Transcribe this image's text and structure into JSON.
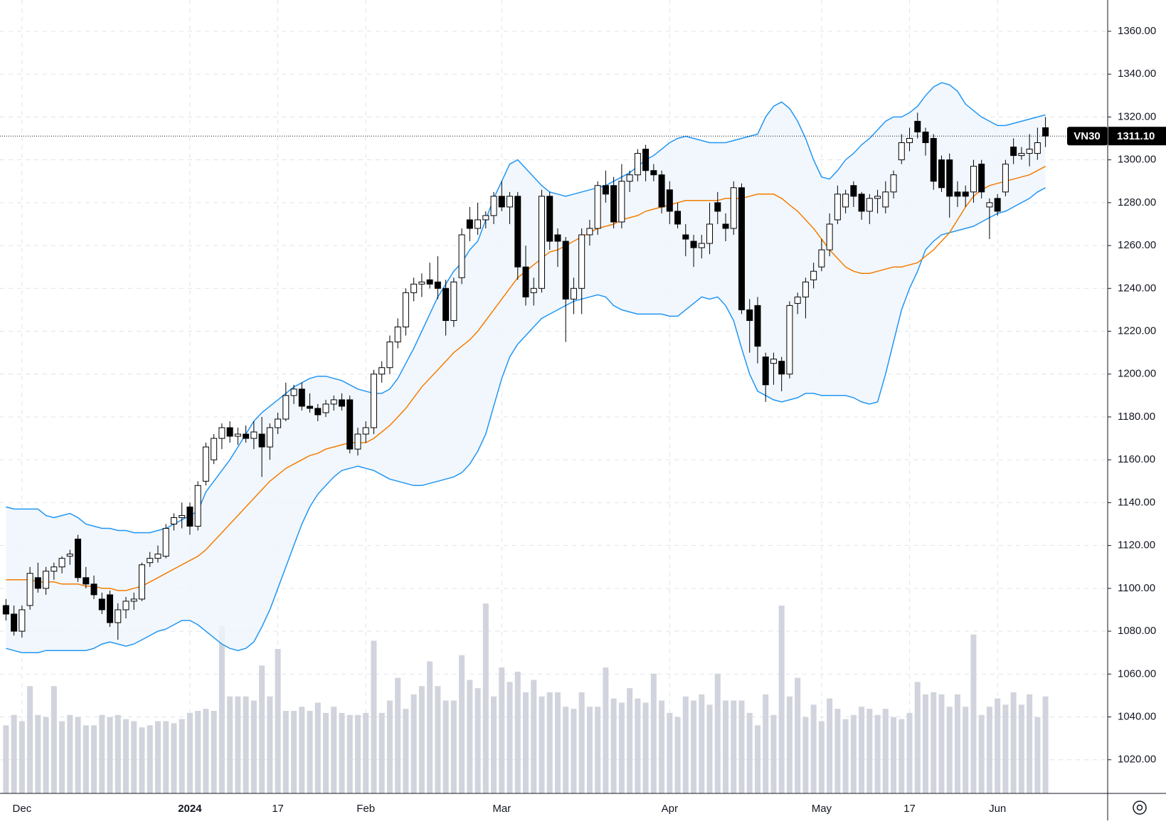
{
  "chart_data": {
    "type": "candlestick",
    "symbol": "VN30",
    "last_price": {
      "value": 1311.1,
      "label": "1311.10"
    },
    "ylim": [
      1004.3,
      1374.6
    ],
    "yticks": [
      {
        "value": 1020,
        "label": "1020.00"
      },
      {
        "value": 1040,
        "label": "1040.00"
      },
      {
        "value": 1060,
        "label": "1060.00"
      },
      {
        "value": 1080,
        "label": "1080.00"
      },
      {
        "value": 1100,
        "label": "1100.00"
      },
      {
        "value": 1120,
        "label": "1120.00"
      },
      {
        "value": 1140,
        "label": "1140.00"
      },
      {
        "value": 1160,
        "label": "1160.00"
      },
      {
        "value": 1180,
        "label": "1180.00"
      },
      {
        "value": 1200,
        "label": "1200.00"
      },
      {
        "value": 1220,
        "label": "1220.00"
      },
      {
        "value": 1240,
        "label": "1240.00"
      },
      {
        "value": 1260,
        "label": "1260.00"
      },
      {
        "value": 1280,
        "label": "1280.00"
      },
      {
        "value": 1300,
        "label": "1300.00"
      },
      {
        "value": 1320,
        "label": "1320.00"
      },
      {
        "value": 1340,
        "label": "1340.00"
      },
      {
        "value": 1360,
        "label": "1360.00"
      }
    ],
    "grid": true,
    "categories": [
      null,
      null,
      "Dec",
      null,
      null,
      null,
      null,
      null,
      null,
      null,
      null,
      null,
      null,
      null,
      null,
      null,
      null,
      null,
      null,
      null,
      null,
      null,
      null,
      "2024",
      null,
      null,
      null,
      null,
      null,
      null,
      null,
      null,
      null,
      null,
      "17",
      null,
      null,
      null,
      null,
      null,
      null,
      null,
      null,
      null,
      null,
      "Feb",
      null,
      null,
      null,
      null,
      null,
      null,
      null,
      null,
      null,
      null,
      null,
      null,
      null,
      null,
      null,
      null,
      "Mar",
      null,
      null,
      null,
      null,
      null,
      null,
      null,
      null,
      null,
      null,
      null,
      null,
      null,
      null,
      null,
      null,
      null,
      null,
      null,
      null,
      "Apr",
      null,
      null,
      null,
      null,
      null,
      null,
      null,
      null,
      null,
      null,
      null,
      null,
      null,
      null,
      null,
      null,
      null,
      null,
      "May",
      null,
      null,
      null,
      null,
      null,
      null,
      null,
      null,
      null,
      null,
      "17",
      null,
      null,
      null,
      null,
      null,
      null,
      null,
      null,
      null,
      null,
      "Jun",
      null,
      null,
      null,
      null,
      null,
      null
    ],
    "candle_colors": {
      "up": "#ffffff",
      "down": "#000000"
    },
    "candles": [
      [
        1092,
        1095,
        1085,
        1088
      ],
      [
        1088,
        1092,
        1078,
        1080
      ],
      [
        1080,
        1092,
        1077,
        1090
      ],
      [
        1092,
        1110,
        1090,
        1107
      ],
      [
        1105,
        1112,
        1098,
        1100
      ],
      [
        1100,
        1110,
        1097,
        1108
      ],
      [
        1108,
        1112,
        1104,
        1110
      ],
      [
        1110,
        1115,
        1107,
        1114
      ],
      [
        1115,
        1118,
        1111,
        1116
      ],
      [
        1123,
        1125,
        1103,
        1105
      ],
      [
        1105,
        1110,
        1100,
        1102
      ],
      [
        1102,
        1106,
        1095,
        1097
      ],
      [
        1095,
        1098,
        1088,
        1090
      ],
      [
        1097,
        1099,
        1082,
        1084
      ],
      [
        1084,
        1093,
        1076,
        1090
      ],
      [
        1090,
        1096,
        1086,
        1094
      ],
      [
        1094,
        1098,
        1090,
        1095
      ],
      [
        1095,
        1112,
        1094,
        1111
      ],
      [
        1112,
        1117,
        1110,
        1114
      ],
      [
        1114,
        1120,
        1112,
        1116
      ],
      [
        1115,
        1130,
        1114,
        1128
      ],
      [
        1130,
        1135,
        1127,
        1133
      ],
      [
        1133,
        1140,
        1128,
        1134
      ],
      [
        1138,
        1140,
        1125,
        1129
      ],
      [
        1129,
        1150,
        1127,
        1148
      ],
      [
        1150,
        1168,
        1148,
        1166
      ],
      [
        1160,
        1172,
        1158,
        1170
      ],
      [
        1170,
        1177,
        1165,
        1175
      ],
      [
        1175,
        1178,
        1168,
        1171
      ],
      [
        1171,
        1175,
        1167,
        1172
      ],
      [
        1172,
        1176,
        1168,
        1170
      ],
      [
        1170,
        1178,
        1165,
        1173
      ],
      [
        1172,
        1180,
        1152,
        1166
      ],
      [
        1166,
        1177,
        1160,
        1175
      ],
      [
        1175,
        1182,
        1172,
        1179
      ],
      [
        1179,
        1196,
        1178,
        1190
      ],
      [
        1190,
        1195,
        1186,
        1193
      ],
      [
        1193,
        1196,
        1183,
        1185
      ],
      [
        1185,
        1191,
        1182,
        1184
      ],
      [
        1184,
        1186,
        1178,
        1181
      ],
      [
        1182,
        1188,
        1180,
        1186
      ],
      [
        1186,
        1190,
        1183,
        1188
      ],
      [
        1188,
        1191,
        1183,
        1185
      ],
      [
        1188,
        1190,
        1163,
        1165
      ],
      [
        1165,
        1175,
        1162,
        1172
      ],
      [
        1172,
        1178,
        1168,
        1175
      ],
      [
        1175,
        1202,
        1172,
        1200
      ],
      [
        1200,
        1206,
        1196,
        1203
      ],
      [
        1203,
        1218,
        1200,
        1215
      ],
      [
        1215,
        1226,
        1212,
        1222
      ],
      [
        1222,
        1240,
        1218,
        1238
      ],
      [
        1238,
        1245,
        1234,
        1242
      ],
      [
        1242,
        1247,
        1236,
        1243
      ],
      [
        1244,
        1252,
        1240,
        1242
      ],
      [
        1243,
        1255,
        1235,
        1240
      ],
      [
        1240,
        1244,
        1218,
        1225
      ],
      [
        1225,
        1245,
        1222,
        1243
      ],
      [
        1245,
        1268,
        1242,
        1265
      ],
      [
        1272,
        1278,
        1262,
        1268
      ],
      [
        1268,
        1280,
        1265,
        1272
      ],
      [
        1272,
        1276,
        1268,
        1274
      ],
      [
        1274,
        1285,
        1270,
        1283
      ],
      [
        1283,
        1290,
        1276,
        1278
      ],
      [
        1278,
        1285,
        1270,
        1283
      ],
      [
        1283,
        1285,
        1244,
        1250
      ],
      [
        1250,
        1260,
        1232,
        1236
      ],
      [
        1238,
        1245,
        1232,
        1240
      ],
      [
        1240,
        1286,
        1238,
        1283
      ],
      [
        1283,
        1285,
        1258,
        1262
      ],
      [
        1265,
        1268,
        1250,
        1262
      ],
      [
        1262,
        1264,
        1215,
        1235
      ],
      [
        1235,
        1245,
        1228,
        1240
      ],
      [
        1240,
        1268,
        1228,
        1265
      ],
      [
        1265,
        1272,
        1260,
        1268
      ],
      [
        1268,
        1290,
        1265,
        1288
      ],
      [
        1288,
        1295,
        1280,
        1284
      ],
      [
        1288,
        1292,
        1268,
        1271
      ],
      [
        1271,
        1298,
        1268,
        1290
      ],
      [
        1290,
        1295,
        1285,
        1293
      ],
      [
        1293,
        1305,
        1290,
        1303
      ],
      [
        1305,
        1307,
        1290,
        1295
      ],
      [
        1295,
        1298,
        1290,
        1293
      ],
      [
        1293,
        1295,
        1275,
        1278
      ],
      [
        1286,
        1290,
        1270,
        1276
      ],
      [
        1276,
        1280,
        1268,
        1270
      ],
      [
        1265,
        1270,
        1255,
        1263
      ],
      [
        1262,
        1265,
        1250,
        1259
      ],
      [
        1259,
        1265,
        1254,
        1261
      ],
      [
        1261,
        1280,
        1256,
        1270
      ],
      [
        1280,
        1285,
        1270,
        1276
      ],
      [
        1270,
        1275,
        1262,
        1268
      ],
      [
        1268,
        1290,
        1265,
        1287
      ],
      [
        1287,
        1289,
        1228,
        1230
      ],
      [
        1230,
        1235,
        1210,
        1225
      ],
      [
        1232,
        1236,
        1205,
        1213
      ],
      [
        1208,
        1210,
        1187,
        1195
      ],
      [
        1205,
        1210,
        1195,
        1207
      ],
      [
        1206,
        1208,
        1192,
        1200
      ],
      [
        1200,
        1234,
        1198,
        1232
      ],
      [
        1233,
        1238,
        1228,
        1236
      ],
      [
        1236,
        1245,
        1226,
        1243
      ],
      [
        1244,
        1252,
        1240,
        1248
      ],
      [
        1250,
        1263,
        1248,
        1258
      ],
      [
        1258,
        1275,
        1255,
        1270
      ],
      [
        1272,
        1288,
        1270,
        1284
      ],
      [
        1278,
        1286,
        1275,
        1284
      ],
      [
        1288,
        1290,
        1278,
        1283
      ],
      [
        1284,
        1285,
        1272,
        1276
      ],
      [
        1276,
        1284,
        1270,
        1282
      ],
      [
        1282,
        1286,
        1275,
        1283
      ],
      [
        1278,
        1290,
        1275,
        1285
      ],
      [
        1285,
        1295,
        1282,
        1293
      ],
      [
        1300,
        1312,
        1298,
        1308
      ],
      [
        1308,
        1315,
        1304,
        1310
      ],
      [
        1318,
        1322,
        1310,
        1313
      ],
      [
        1313,
        1315,
        1302,
        1308
      ],
      [
        1310,
        1312,
        1286,
        1290
      ],
      [
        1300,
        1302,
        1285,
        1287
      ],
      [
        1300,
        1303,
        1273,
        1283
      ],
      [
        1285,
        1290,
        1278,
        1283
      ],
      [
        1285,
        1288,
        1278,
        1283
      ],
      [
        1285,
        1300,
        1280,
        1297
      ],
      [
        1298,
        1300,
        1282,
        1285
      ],
      [
        1278,
        1282,
        1263,
        1280
      ],
      [
        1282,
        1284,
        1274,
        1276
      ],
      [
        1285,
        1300,
        1283,
        1298
      ],
      [
        1306,
        1310,
        1298,
        1302
      ],
      [
        1302,
        1306,
        1300,
        1303
      ],
      [
        1303,
        1312,
        1297,
        1305
      ],
      [
        1303,
        1315,
        1300,
        1308
      ],
      [
        1315,
        1320,
        1306,
        1311.1
      ]
    ],
    "band_color": "#2196f3",
    "middle_color": "#f57c00",
    "band_fill": "#eef5fc",
    "band_upper": [
      1138,
      1137,
      1137,
      1137,
      1137,
      1134,
      1133,
      1134,
      1135,
      1133,
      1130,
      1129,
      1128,
      1128,
      1127,
      1127,
      1126,
      1126,
      1126,
      1127,
      1128,
      1130,
      1132,
      1134,
      1136,
      1145,
      1150,
      1155,
      1160,
      1166,
      1172,
      1178,
      1182,
      1185,
      1188,
      1191,
      1194,
      1196,
      1198,
      1199,
      1199,
      1198,
      1197,
      1195,
      1193,
      1192,
      1191,
      1191,
      1193,
      1198,
      1205,
      1212,
      1220,
      1228,
      1236,
      1242,
      1248,
      1252,
      1258,
      1262,
      1272,
      1282,
      1290,
      1298,
      1300,
      1296,
      1292,
      1288,
      1285,
      1284,
      1283,
      1284,
      1285,
      1286,
      1287,
      1288,
      1290,
      1292,
      1294,
      1297,
      1300,
      1302,
      1305,
      1308,
      1310,
      1311,
      1310,
      1309,
      1308,
      1308,
      1308,
      1309,
      1310,
      1311,
      1312,
      1320,
      1325,
      1327,
      1324,
      1318,
      1310,
      1300,
      1292,
      1291,
      1295,
      1300,
      1303,
      1307,
      1310,
      1314,
      1318,
      1320,
      1320,
      1322,
      1325,
      1330,
      1334,
      1336,
      1335,
      1332,
      1326,
      1323,
      1320,
      1318,
      1316,
      1316,
      1317,
      1318,
      1319,
      1320,
      1321
    ],
    "band_middle": [
      1104,
      1104,
      1104,
      1104,
      1103,
      1103,
      1103,
      1102,
      1102,
      1102,
      1101,
      1101,
      1100,
      1100,
      1099,
      1099,
      1100,
      1101,
      1103,
      1105,
      1107,
      1109,
      1111,
      1113,
      1115,
      1118,
      1122,
      1126,
      1130,
      1134,
      1138,
      1142,
      1146,
      1150,
      1153,
      1156,
      1158,
      1160,
      1162,
      1163,
      1165,
      1166,
      1167,
      1168,
      1168,
      1168,
      1170,
      1173,
      1176,
      1180,
      1184,
      1189,
      1194,
      1198,
      1202,
      1206,
      1210,
      1213,
      1216,
      1220,
      1225,
      1230,
      1235,
      1240,
      1245,
      1248,
      1251,
      1254,
      1257,
      1258,
      1260,
      1262,
      1264,
      1266,
      1268,
      1269,
      1270,
      1272,
      1273,
      1274,
      1276,
      1277,
      1278,
      1279,
      1280,
      1281,
      1281,
      1281,
      1281,
      1281,
      1282,
      1282,
      1282,
      1283,
      1284,
      1284,
      1284,
      1282,
      1279,
      1276,
      1272,
      1268,
      1263,
      1258,
      1254,
      1250,
      1248,
      1247,
      1247,
      1248,
      1249,
      1250,
      1250,
      1251,
      1252,
      1255,
      1258,
      1262,
      1266,
      1272,
      1278,
      1283,
      1286,
      1288,
      1289,
      1290,
      1291,
      1292,
      1293,
      1295,
      1297
    ],
    "band_lower": [
      1072,
      1071,
      1070,
      1070,
      1070,
      1071,
      1071,
      1071,
      1071,
      1071,
      1071,
      1072,
      1074,
      1075,
      1074,
      1073,
      1074,
      1076,
      1078,
      1080,
      1081,
      1083,
      1085,
      1085,
      1083,
      1080,
      1077,
      1074,
      1072,
      1071,
      1072,
      1075,
      1082,
      1090,
      1100,
      1110,
      1120,
      1130,
      1138,
      1144,
      1148,
      1152,
      1155,
      1156,
      1157,
      1156,
      1155,
      1153,
      1151,
      1150,
      1149,
      1148,
      1148,
      1149,
      1150,
      1151,
      1152,
      1154,
      1158,
      1164,
      1172,
      1185,
      1198,
      1208,
      1214,
      1218,
      1222,
      1226,
      1228,
      1230,
      1232,
      1234,
      1235,
      1236,
      1237,
      1236,
      1232,
      1230,
      1229,
      1228,
      1228,
      1228,
      1228,
      1227,
      1227,
      1230,
      1233,
      1236,
      1235,
      1236,
      1232,
      1225,
      1212,
      1200,
      1192,
      1190,
      1188,
      1187,
      1188,
      1189,
      1191,
      1191,
      1190,
      1190,
      1190,
      1190,
      1189,
      1187,
      1186,
      1187,
      1200,
      1215,
      1230,
      1240,
      1248,
      1258,
      1262,
      1265,
      1266,
      1267,
      1268,
      1269,
      1271,
      1273,
      1275,
      1276,
      1278,
      1280,
      1282,
      1285,
      1287
    ],
    "volume": {
      "color": "#d1d4dc",
      "lim": [
        0,
        100
      ],
      "values": [
        33,
        38,
        35,
        52,
        38,
        37,
        52,
        35,
        38,
        37,
        33,
        33,
        38,
        37,
        38,
        36,
        35,
        32,
        33,
        35,
        35,
        34,
        36,
        39,
        40,
        41,
        40,
        81,
        47,
        47,
        47,
        45,
        62,
        47,
        70,
        40,
        40,
        42,
        40,
        44,
        39,
        42,
        39,
        38,
        38,
        39,
        74,
        39,
        45,
        56,
        41,
        48,
        52,
        64,
        52,
        45,
        45,
        67,
        55,
        51,
        92,
        47,
        61,
        54,
        59,
        49,
        55,
        47,
        49,
        49,
        42,
        41,
        49,
        42,
        42,
        61,
        46,
        44,
        51,
        46,
        44,
        58,
        45,
        39,
        37,
        47,
        45,
        48,
        43,
        58,
        45,
        45,
        45,
        39,
        33,
        48,
        38,
        91,
        47,
        56,
        37,
        43,
        35,
        46,
        41,
        36,
        38,
        42,
        41,
        38,
        41,
        37,
        36,
        39,
        54,
        48,
        49,
        48,
        42,
        48,
        42,
        77,
        38,
        42,
        46,
        43,
        49,
        43,
        48,
        37,
        47
      ]
    }
  }
}
